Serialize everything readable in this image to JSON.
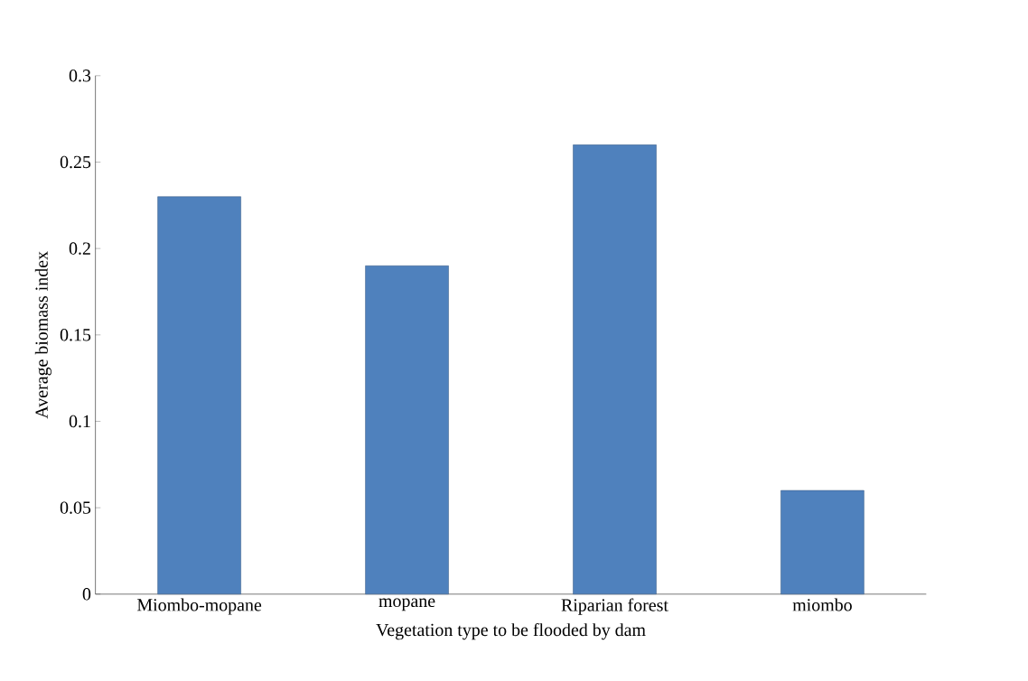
{
  "chart_data": {
    "type": "bar",
    "xlabel": "Vegetation type to be flooded by dam",
    "ylabel": "Average biomass index",
    "categories": [
      "Miombo-mopane",
      "mopane",
      "Riparian forest",
      "miombo"
    ],
    "values": [
      0.23,
      0.19,
      0.26,
      0.06
    ],
    "color": "#4f81bd",
    "ylim": [
      0,
      0.3
    ],
    "yticks": [
      0,
      0.05,
      0.1,
      0.15,
      0.2,
      0.25,
      0.3
    ],
    "grid": false
  }
}
